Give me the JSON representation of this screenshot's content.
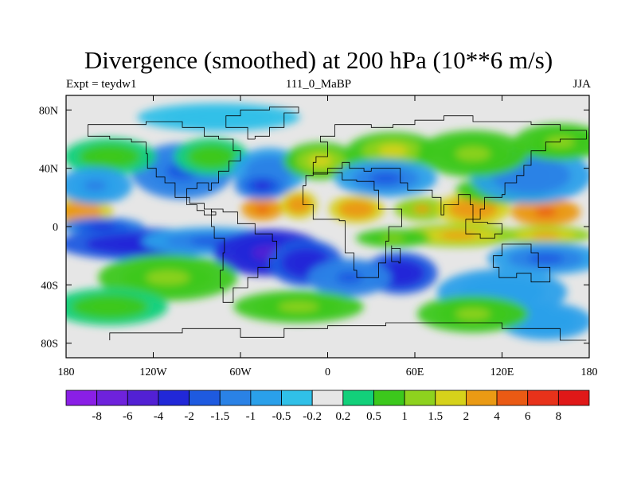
{
  "chart_data": {
    "type": "heatmap",
    "title": "Divergence (smoothed) at 200 hPa (10**6 m/s)",
    "subtitle_left": "Expt = teydw1",
    "subtitle_center": "111_0_MaBP",
    "subtitle_right": "JJA",
    "xlim": [
      -180,
      180
    ],
    "ylim": [
      -90,
      90
    ],
    "x_ticks": [
      {
        "value": -180,
        "label": "180"
      },
      {
        "value": -120,
        "label": "120W"
      },
      {
        "value": -60,
        "label": "60W"
      },
      {
        "value": 0,
        "label": "0"
      },
      {
        "value": 60,
        "label": "60E"
      },
      {
        "value": 120,
        "label": "120E"
      },
      {
        "value": 180,
        "label": "180"
      }
    ],
    "y_ticks": [
      {
        "value": 80,
        "label": "80N"
      },
      {
        "value": 40,
        "label": "40N"
      },
      {
        "value": 0,
        "label": "0"
      },
      {
        "value": -40,
        "label": "40S"
      },
      {
        "value": -80,
        "label": "80S"
      }
    ],
    "colorbar": {
      "labels": [
        "-8",
        "-6",
        "-4",
        "-2",
        "-1.5",
        "-1",
        "-0.5",
        "-0.2",
        "0.2",
        "0.5",
        "1",
        "1.5",
        "2",
        "4",
        "6",
        "8"
      ],
      "colors": [
        "#8a1fe6",
        "#6e22dc",
        "#5220d4",
        "#2128d8",
        "#1e5ae0",
        "#2a82e6",
        "#2aa0ea",
        "#30c0e8",
        "#e6e6e6",
        "#12d07a",
        "#3cc81c",
        "#8ed21e",
        "#d6d21a",
        "#ea9a14",
        "#ea5a14",
        "#e8321a",
        "#e01818"
      ]
    },
    "fields": [
      {
        "lon": -170,
        "lat": 10,
        "value": 3,
        "slon": 14,
        "slat": 7
      },
      {
        "lon": -155,
        "lat": 0,
        "value": -2.5,
        "slon": 18,
        "slat": 4
      },
      {
        "lon": -130,
        "lat": -12,
        "value": -2.8,
        "slon": 35,
        "slat": 7
      },
      {
        "lon": -80,
        "lat": -10,
        "value": -1.8,
        "slon": 30,
        "slat": 6
      },
      {
        "lon": -40,
        "lat": -18,
        "value": -4.5,
        "slon": 24,
        "slat": 10
      },
      {
        "lon": -15,
        "lat": -25,
        "value": -3.5,
        "slon": 16,
        "slat": 10
      },
      {
        "lon": 50,
        "lat": -32,
        "value": -3,
        "slon": 16,
        "slat": 9
      },
      {
        "lon": 15,
        "lat": -35,
        "value": -2,
        "slon": 18,
        "slat": 8
      },
      {
        "lon": -45,
        "lat": 12,
        "value": 4.5,
        "slon": 9,
        "slat": 5
      },
      {
        "lon": -20,
        "lat": 15,
        "value": 3,
        "slon": 8,
        "slat": 6
      },
      {
        "lon": 20,
        "lat": 12,
        "value": 3.5,
        "slon": 12,
        "slat": 6
      },
      {
        "lon": 65,
        "lat": 12,
        "value": 2,
        "slon": 12,
        "slat": 5
      },
      {
        "lon": 100,
        "lat": 12,
        "value": 3,
        "slon": 16,
        "slat": 7
      },
      {
        "lon": 150,
        "lat": 10,
        "value": 5,
        "slon": 15,
        "slat": 6
      },
      {
        "lon": 120,
        "lat": 25,
        "value": 1.2,
        "slon": 20,
        "slat": 6
      },
      {
        "lon": 90,
        "lat": -6,
        "value": 2.5,
        "slon": 26,
        "slat": 5
      },
      {
        "lon": 45,
        "lat": -8,
        "value": 1.3,
        "slon": 16,
        "slat": 4
      },
      {
        "lon": 150,
        "lat": -6,
        "value": 2.2,
        "slon": 20,
        "slat": 4
      },
      {
        "lon": 150,
        "lat": -22,
        "value": -1.8,
        "slon": 25,
        "slat": 7
      },
      {
        "lon": 140,
        "lat": 35,
        "value": -1.5,
        "slon": 26,
        "slat": 12
      },
      {
        "lon": -100,
        "lat": 38,
        "value": -2,
        "slon": 22,
        "slat": 12
      },
      {
        "lon": -80,
        "lat": 48,
        "value": 0.8,
        "slon": 16,
        "slat": 8
      },
      {
        "lon": -40,
        "lat": 38,
        "value": -1.5,
        "slon": 16,
        "slat": 10
      },
      {
        "lon": -45,
        "lat": 28,
        "value": -2.2,
        "slon": 12,
        "slat": 6
      },
      {
        "lon": -5,
        "lat": 45,
        "value": 1.5,
        "slon": 16,
        "slat": 8
      },
      {
        "lon": 45,
        "lat": 52,
        "value": 1.5,
        "slon": 20,
        "slat": 8
      },
      {
        "lon": 40,
        "lat": 33,
        "value": -1.6,
        "slon": 22,
        "slat": 8
      },
      {
        "lon": 100,
        "lat": 50,
        "value": 1.2,
        "slon": 24,
        "slat": 10
      },
      {
        "lon": 160,
        "lat": 58,
        "value": 1,
        "slon": 20,
        "slat": 8
      },
      {
        "lon": -150,
        "lat": 48,
        "value": 0.8,
        "slon": 20,
        "slat": 8
      },
      {
        "lon": -160,
        "lat": 28,
        "value": -1.2,
        "slon": 16,
        "slat": 8
      },
      {
        "lon": -110,
        "lat": -35,
        "value": 1.3,
        "slon": 30,
        "slat": 10
      },
      {
        "lon": 120,
        "lat": -45,
        "value": -1,
        "slon": 28,
        "slat": 10
      },
      {
        "lon": 150,
        "lat": -65,
        "value": -1,
        "slon": 20,
        "slat": 8
      },
      {
        "lon": 100,
        "lat": -60,
        "value": 1,
        "slon": 24,
        "slat": 8
      },
      {
        "lon": -20,
        "lat": -55,
        "value": 1.3,
        "slon": 28,
        "slat": 7
      },
      {
        "lon": -150,
        "lat": -55,
        "value": 0.8,
        "slon": 25,
        "slat": 8
      },
      {
        "lon": -75,
        "lat": 75,
        "value": -0.5,
        "slon": 35,
        "slat": 6
      }
    ]
  }
}
